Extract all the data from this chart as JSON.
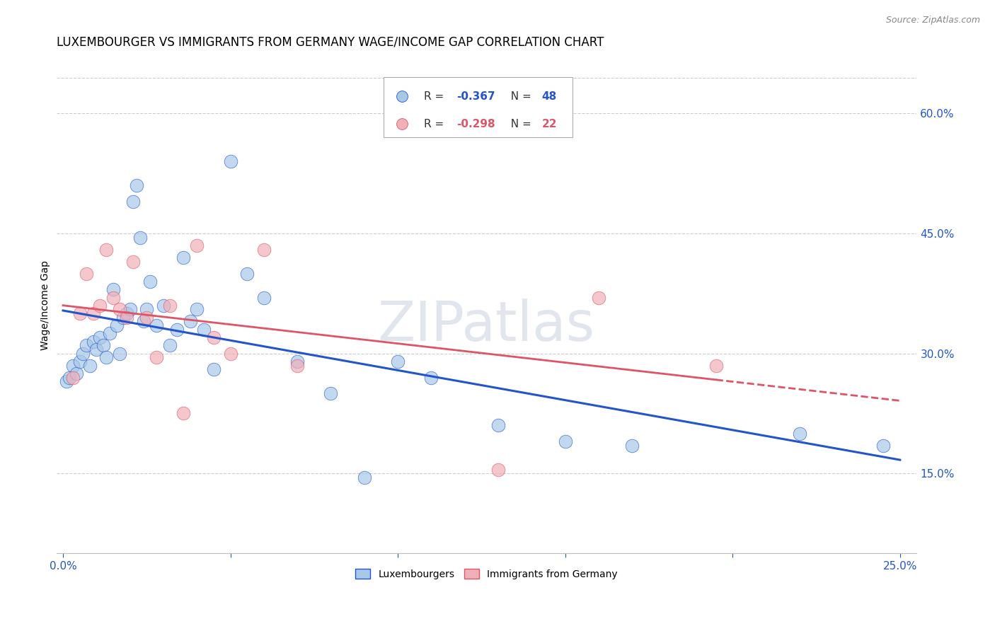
{
  "title": "LUXEMBOURGER VS IMMIGRANTS FROM GERMANY WAGE/INCOME GAP CORRELATION CHART",
  "source": "Source: ZipAtlas.com",
  "ylabel": "Wage/Income Gap",
  "xlim": [
    -0.002,
    0.255
  ],
  "ylim": [
    0.05,
    0.67
  ],
  "xticks": [
    0.0,
    0.05,
    0.1,
    0.15,
    0.2,
    0.25
  ],
  "xtick_labels": [
    "0.0%",
    "",
    "",
    "",
    "",
    "25.0%"
  ],
  "ytick_right_labels": [
    "60.0%",
    "45.0%",
    "30.0%",
    "15.0%"
  ],
  "ytick_right_values": [
    0.6,
    0.45,
    0.3,
    0.15
  ],
  "blue_color": "#a8c8e8",
  "pink_color": "#f0b0b8",
  "line_blue": "#2255cc",
  "line_pink": "#dd5566",
  "watermark": "ZIPatlas",
  "watermark_color": "#c8d0e0",
  "title_fontsize": 12,
  "axis_label_fontsize": 10,
  "tick_fontsize": 11,
  "legend_fontsize": 11,
  "blue_scatter_x": [
    0.001,
    0.002,
    0.003,
    0.004,
    0.005,
    0.006,
    0.007,
    0.008,
    0.009,
    0.01,
    0.011,
    0.012,
    0.013,
    0.014,
    0.015,
    0.016,
    0.017,
    0.018,
    0.019,
    0.02,
    0.021,
    0.022,
    0.023,
    0.024,
    0.025,
    0.026,
    0.028,
    0.03,
    0.032,
    0.034,
    0.036,
    0.038,
    0.04,
    0.042,
    0.045,
    0.05,
    0.055,
    0.06,
    0.07,
    0.08,
    0.09,
    0.1,
    0.11,
    0.13,
    0.15,
    0.17,
    0.22,
    0.245
  ],
  "blue_scatter_y": [
    0.265,
    0.27,
    0.285,
    0.275,
    0.29,
    0.3,
    0.31,
    0.285,
    0.315,
    0.305,
    0.32,
    0.31,
    0.295,
    0.325,
    0.38,
    0.335,
    0.3,
    0.345,
    0.35,
    0.355,
    0.49,
    0.51,
    0.445,
    0.34,
    0.355,
    0.39,
    0.335,
    0.36,
    0.31,
    0.33,
    0.42,
    0.34,
    0.355,
    0.33,
    0.28,
    0.54,
    0.4,
    0.37,
    0.29,
    0.25,
    0.145,
    0.29,
    0.27,
    0.21,
    0.19,
    0.185,
    0.2,
    0.185
  ],
  "pink_scatter_x": [
    0.003,
    0.005,
    0.007,
    0.009,
    0.011,
    0.013,
    0.015,
    0.017,
    0.019,
    0.021,
    0.025,
    0.028,
    0.032,
    0.036,
    0.04,
    0.045,
    0.05,
    0.06,
    0.07,
    0.13,
    0.16,
    0.195
  ],
  "pink_scatter_y": [
    0.27,
    0.35,
    0.4,
    0.35,
    0.36,
    0.43,
    0.37,
    0.355,
    0.345,
    0.415,
    0.345,
    0.295,
    0.36,
    0.225,
    0.435,
    0.32,
    0.3,
    0.43,
    0.285,
    0.155,
    0.37,
    0.285
  ],
  "legend_labels": [
    "Luxembourgers",
    "Immigrants from Germany"
  ]
}
